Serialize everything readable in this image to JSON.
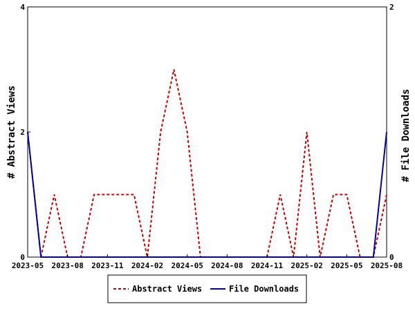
{
  "chart_data": {
    "type": "line",
    "title": "",
    "x": [
      "2023-05",
      "2023-06",
      "2023-07",
      "2023-08",
      "2023-09",
      "2023-10",
      "2023-11",
      "2023-12",
      "2024-01",
      "2024-02",
      "2024-03",
      "2024-04",
      "2024-05",
      "2024-06",
      "2024-07",
      "2024-08",
      "2024-09",
      "2024-10",
      "2024-11",
      "2024-12",
      "2025-01",
      "2025-02",
      "2025-03",
      "2025-04",
      "2025-05",
      "2025-06",
      "2025-07",
      "2025-08"
    ],
    "x_ticks": [
      "2023-05",
      "2023-08",
      "2023-11",
      "2024-02",
      "2024-05",
      "2024-08",
      "2024-11",
      "2025-02",
      "2025-05",
      "2025-08"
    ],
    "y_left": {
      "label": "# Abstract Views",
      "ylim": [
        0,
        4
      ],
      "ticks": [
        "0",
        "2",
        "4"
      ]
    },
    "y_right": {
      "label": "# File Downloads",
      "ylim": [
        0,
        2
      ],
      "ticks": [
        "0",
        "2"
      ]
    },
    "series": [
      {
        "name": "Abstract Views",
        "axis": "left",
        "color": "#cc0000",
        "dash": true,
        "values": [
          2,
          0,
          1,
          0,
          0,
          1,
          1,
          1,
          1,
          0,
          2,
          3,
          2,
          0,
          0,
          0,
          0,
          0,
          0,
          1,
          0,
          2,
          0,
          1,
          1,
          0,
          0,
          1
        ]
      },
      {
        "name": "File Downloads",
        "axis": "right",
        "color": "#0000aa",
        "dash": false,
        "values": [
          1,
          0,
          0,
          0,
          0,
          0,
          0,
          0,
          0,
          0,
          0,
          0,
          0,
          0,
          0,
          0,
          0,
          0,
          0,
          0,
          0,
          0,
          0,
          0,
          0,
          0,
          0,
          1
        ]
      }
    ],
    "legend_position": "bottom",
    "grid": false
  }
}
